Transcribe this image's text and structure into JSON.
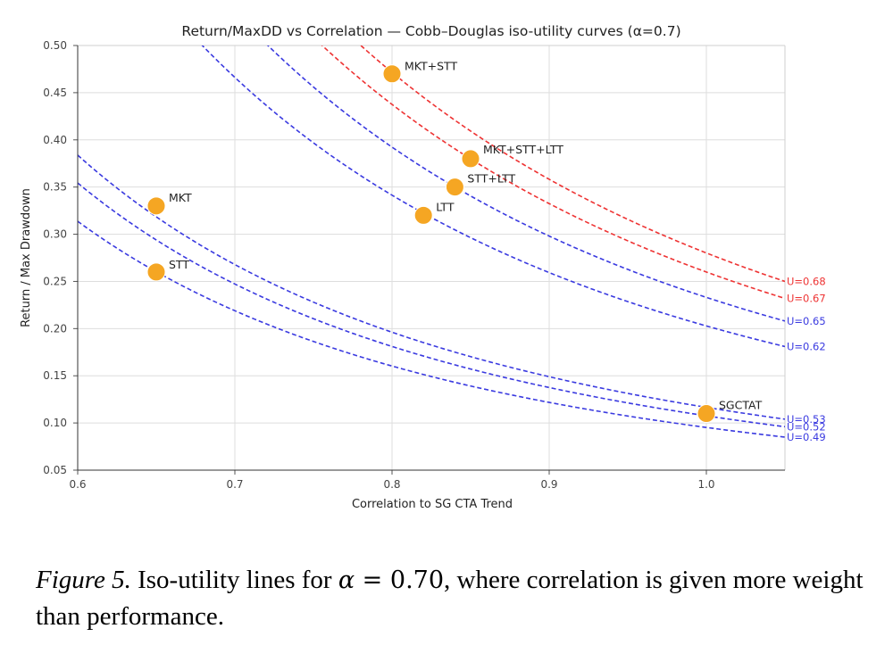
{
  "chart_data": {
    "type": "scatter",
    "title": "Return/MaxDD vs Correlation — Cobb–Douglas iso-utility curves (α=0.7)",
    "xlabel": "Correlation to SG CTA Trend",
    "ylabel": "Return / Max Drawdown",
    "xlim": [
      0.6,
      1.05
    ],
    "ylim": [
      0.05,
      0.5
    ],
    "xticks": [
      "0.6",
      "0.7",
      "0.8",
      "0.9",
      "1.0"
    ],
    "yticks": [
      "0.05",
      "0.10",
      "0.15",
      "0.20",
      "0.25",
      "0.30",
      "0.35",
      "0.40",
      "0.45",
      "0.50"
    ],
    "grid": true,
    "alpha": 0.7,
    "points": [
      {
        "label": "MKT+STT",
        "x": 0.8,
        "y": 0.47
      },
      {
        "label": "MKT+STT+LTT",
        "x": 0.85,
        "y": 0.38
      },
      {
        "label": "STT+LTT",
        "x": 0.84,
        "y": 0.35
      },
      {
        "label": "LTT",
        "x": 0.82,
        "y": 0.32
      },
      {
        "label": "MKT",
        "x": 0.65,
        "y": 0.33
      },
      {
        "label": "STT",
        "x": 0.65,
        "y": 0.26
      },
      {
        "label": "SGCTAT",
        "x": 1.0,
        "y": 0.11
      }
    ],
    "curves": [
      {
        "label": "U=0.68",
        "color": "#ee3333",
        "anchor": [
          1.05,
          0.25
        ]
      },
      {
        "label": "U=0.67",
        "color": "#ee3333",
        "anchor": [
          1.05,
          0.232
        ]
      },
      {
        "label": "U=0.65",
        "color": "#3a3ae0",
        "anchor": [
          1.05,
          0.208
        ]
      },
      {
        "label": "U=0.62",
        "color": "#3a3ae0",
        "anchor": [
          1.05,
          0.181
        ]
      },
      {
        "label": "U=0.53",
        "color": "#3a3ae0",
        "anchor": [
          1.05,
          0.104
        ]
      },
      {
        "label": "U=0.52",
        "color": "#3a3ae0",
        "anchor": [
          1.05,
          0.096
        ]
      },
      {
        "label": "U=0.49",
        "color": "#3a3ae0",
        "anchor": [
          1.05,
          0.085
        ]
      }
    ],
    "point_color": "#f5a623"
  },
  "caption": {
    "figure_label": "Figure 5.",
    "text_before": "Iso-utility lines for",
    "alpha_symbol": "α",
    "equals": "=",
    "alpha_value": "0.70",
    "text_after": ", where correlation is given more weight than performance."
  }
}
